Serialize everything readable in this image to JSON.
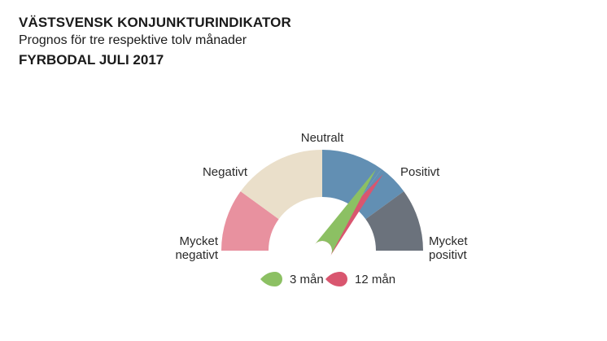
{
  "header": {
    "title": "VÄSTSVENSK KONJUNKTURINDIKATOR",
    "subtitle": "Prognos för tre respektive tolv månader",
    "region": "FYRBODAL JULI 2017"
  },
  "chart_data": {
    "type": "gauge",
    "segments": [
      {
        "label_lines": [
          "Mycket",
          "negativt"
        ],
        "color": "#e8919f"
      },
      {
        "label_lines": [
          "Negativt"
        ],
        "color": "#eadfca"
      },
      {
        "label_lines": [
          "Neutralt"
        ],
        "color": "#628fb3"
      },
      {
        "label_lines": [
          "Positivt"
        ],
        "color": "#628fb3"
      },
      {
        "label_lines": [
          "Mycket",
          "positivt"
        ],
        "color": "#6b727c"
      }
    ],
    "scale": {
      "min": -2.5,
      "max": 2.5
    },
    "needles": [
      {
        "name": "3 mån",
        "value": 0.93,
        "color": "#8cc063"
      },
      {
        "name": "12 mån",
        "value": 1.07,
        "color": "#d9566f"
      }
    ],
    "legend": {
      "placement": "bottom"
    }
  }
}
